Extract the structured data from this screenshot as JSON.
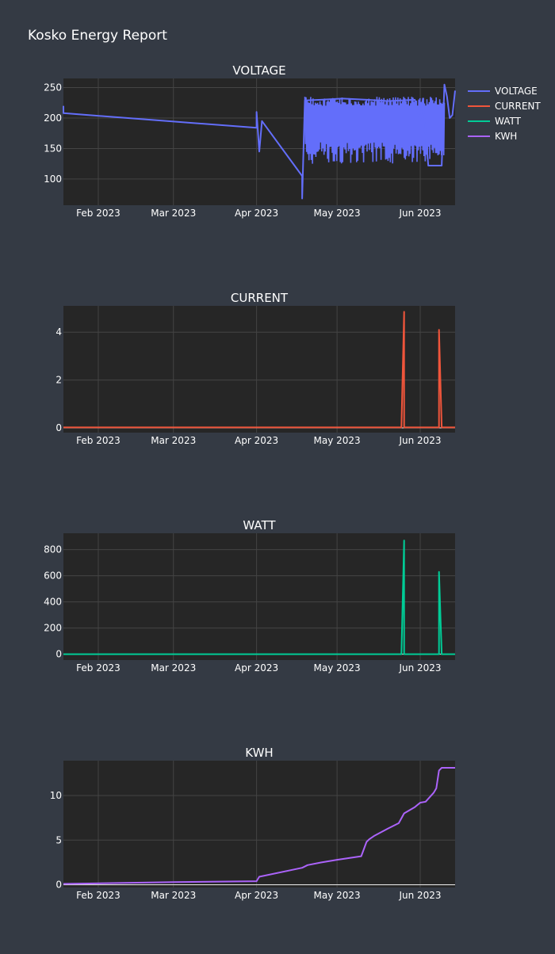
{
  "report_title": "Kosko Energy Report",
  "x_tick_labels": [
    "Feb 2023",
    "Mar 2023",
    "Apr 2023",
    "May 2023",
    "Jun 2023"
  ],
  "x_tick_dates": [
    "2023-02-01",
    "2023-03-01",
    "2023-04-01",
    "2023-05-01",
    "2023-06-01"
  ],
  "x_range": [
    "2023-01-19",
    "2023-06-14"
  ],
  "legend": {
    "position": "top-right",
    "items": [
      {
        "label": "VOLTAGE",
        "color": "#636efa"
      },
      {
        "label": "CURRENT",
        "color": "#ef553b"
      },
      {
        "label": "WATT",
        "color": "#00cc96"
      },
      {
        "label": "KWH",
        "color": "#ab63fa"
      }
    ]
  },
  "chart_data": [
    {
      "type": "line",
      "title": "VOLTAGE",
      "color": "#636efa",
      "grid": true,
      "ylim": [
        57,
        265
      ],
      "y_ticks": [
        100,
        150,
        200,
        250
      ],
      "series": [
        {
          "name": "VOLTAGE",
          "x": [
            "2023-01-19",
            "2023-01-19",
            "2023-04-01",
            "2023-04-01",
            "2023-04-02",
            "2023-04-03",
            "2023-04-18",
            "2023-04-18",
            "2023-04-19",
            "2023-04-25",
            "2023-05-03",
            "2023-05-12",
            "2023-05-20",
            "2023-05-30",
            "2023-06-01",
            "2023-06-02",
            "2023-06-04",
            "2023-06-09",
            "2023-06-10",
            "2023-06-11",
            "2023-06-12",
            "2023-06-13",
            "2023-06-14"
          ],
          "y": [
            220,
            208,
            184,
            210,
            145,
            195,
            105,
            68,
            229,
            230,
            232,
            230,
            228,
            230,
            196,
            232,
            122,
            122,
            255,
            235,
            200,
            205,
            245
          ]
        }
      ],
      "band": {
        "x_start": "2023-04-19",
        "x_end": "2023-06-10",
        "y_low": 125,
        "y_high": 235
      }
    },
    {
      "type": "line",
      "title": "CURRENT",
      "color": "#ef553b",
      "grid": true,
      "ylim": [
        -0.2,
        5.1
      ],
      "y_ticks": [
        0,
        2,
        4
      ],
      "series": [
        {
          "name": "CURRENT",
          "x": [
            "2023-01-19",
            "2023-05-25",
            "2023-05-26",
            "2023-05-26",
            "2023-05-27",
            "2023-06-08",
            "2023-06-08",
            "2023-06-09",
            "2023-06-14"
          ],
          "y": [
            0.02,
            0.02,
            4.85,
            0.02,
            0.02,
            0.02,
            4.1,
            0.02,
            0.02
          ]
        }
      ]
    },
    {
      "type": "line",
      "title": "WATT",
      "color": "#00cc96",
      "grid": true,
      "ylim": [
        -45,
        925
      ],
      "y_ticks": [
        0,
        200,
        400,
        600,
        800
      ],
      "series": [
        {
          "name": "WATT",
          "x": [
            "2023-01-19",
            "2023-05-25",
            "2023-05-26",
            "2023-05-26",
            "2023-05-27",
            "2023-06-08",
            "2023-06-08",
            "2023-06-09",
            "2023-06-14"
          ],
          "y": [
            0,
            0,
            870,
            0,
            0,
            0,
            630,
            0,
            0
          ]
        }
      ]
    },
    {
      "type": "line",
      "title": "KWH",
      "color": "#ab63fa",
      "grid": true,
      "ylim": [
        -0.3,
        13.9
      ],
      "y_ticks": [
        0,
        5,
        10
      ],
      "series": [
        {
          "name": "KWH",
          "x": [
            "2023-01-19",
            "2023-03-01",
            "2023-04-01",
            "2023-04-02",
            "2023-04-18",
            "2023-04-20",
            "2023-04-25",
            "2023-05-01",
            "2023-05-10",
            "2023-05-12",
            "2023-05-13",
            "2023-05-15",
            "2023-05-20",
            "2023-05-24",
            "2023-05-26",
            "2023-05-30",
            "2023-06-01",
            "2023-06-03",
            "2023-06-06",
            "2023-06-07",
            "2023-06-08",
            "2023-06-09",
            "2023-06-14"
          ],
          "y": [
            0.1,
            0.3,
            0.4,
            0.9,
            1.9,
            2.2,
            2.5,
            2.8,
            3.2,
            4.8,
            5.1,
            5.5,
            6.3,
            6.9,
            8.0,
            8.7,
            9.2,
            9.3,
            10.3,
            10.8,
            12.8,
            13.1,
            13.1
          ]
        }
      ]
    }
  ]
}
